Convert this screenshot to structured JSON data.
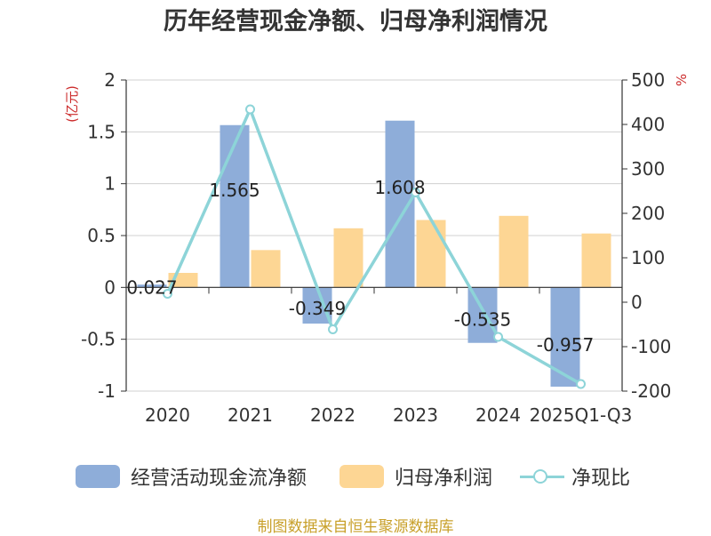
{
  "title": "历年经营现金净额、归母净利润情况",
  "left_unit": "(亿元)",
  "right_unit": "%",
  "source": "制图数据来自恒生聚源数据库",
  "legend": {
    "cash": "经营活动现金流净额",
    "profit": "归母净利润",
    "ratio": "净现比"
  },
  "colors": {
    "cash": "#8eadd9",
    "profit": "#fdd694",
    "ratio": "#8dd4d8",
    "unit": "#cc2b2b",
    "source": "#c8a02a"
  },
  "chart_data": {
    "type": "bar",
    "categories": [
      "2020",
      "2021",
      "2022",
      "2023",
      "2024",
      "2025Q1-Q3"
    ],
    "series": [
      {
        "name": "经营活动现金流净额",
        "type": "bar",
        "axis": "left",
        "values": [
          0.027,
          1.565,
          -0.349,
          1.608,
          -0.535,
          -0.957
        ],
        "labels": [
          "0.027",
          "1.565",
          "-0.349",
          "1.608",
          "-0.535",
          "-0.957"
        ]
      },
      {
        "name": "归母净利润",
        "type": "bar",
        "axis": "left",
        "values": [
          0.14,
          0.36,
          0.57,
          0.65,
          0.69,
          0.52
        ]
      },
      {
        "name": "净现比",
        "type": "line",
        "axis": "right",
        "values": [
          19,
          434,
          -61,
          247,
          -78,
          -184
        ]
      }
    ],
    "left_axis": {
      "min": -1,
      "max": 2,
      "ticks": [
        "-1",
        "-0.5",
        "0",
        "0.5",
        "1",
        "1.5",
        "2"
      ]
    },
    "right_axis": {
      "min": -200,
      "max": 500,
      "ticks": [
        "-200",
        "-100",
        "0",
        "100",
        "200",
        "300",
        "400",
        "500"
      ]
    },
    "grid": true,
    "legend_position": "bottom"
  }
}
